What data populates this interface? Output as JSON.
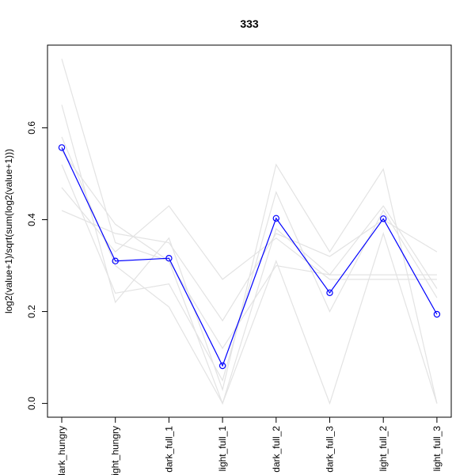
{
  "chart_data": {
    "type": "line",
    "title": "333",
    "xlabel": "",
    "ylabel": "log2(value+1)/sqrt(sum(log2(value+1)))",
    "categories": [
      "dark_hungry",
      "light_hungry",
      "dark_full_1",
      "light_full_1",
      "dark_full_2",
      "dark_full_3",
      "light_full_2",
      "light_full_3"
    ],
    "ylim": [
      -0.03,
      0.78
    ],
    "yticks": [
      0.0,
      0.2,
      0.4,
      0.6
    ],
    "ytick_labels": [
      "0.0",
      "0.2",
      "0.4",
      "0.6"
    ],
    "grid": false,
    "highlight_series": {
      "color": "#0000ff",
      "marker": "open-circle",
      "values": [
        0.557,
        0.31,
        0.316,
        0.082,
        0.403,
        0.241,
        0.402,
        0.194
      ]
    },
    "background_series_color": "#e3e3e3",
    "background_series": [
      [
        0.75,
        0.35,
        0.31,
        0.0,
        0.31,
        0.0,
        0.37,
        0.0
      ],
      [
        0.65,
        0.22,
        0.36,
        0.03,
        0.52,
        0.33,
        0.51,
        0.0
      ],
      [
        0.52,
        0.24,
        0.26,
        0.05,
        0.46,
        0.2,
        0.42,
        0.23
      ],
      [
        0.42,
        0.37,
        0.35,
        0.18,
        0.37,
        0.32,
        0.4,
        0.33
      ],
      [
        0.47,
        0.33,
        0.43,
        0.27,
        0.36,
        0.27,
        0.27,
        0.27
      ],
      [
        0.58,
        0.3,
        0.21,
        0.0,
        0.38,
        0.28,
        0.43,
        0.25
      ],
      [
        0.55,
        0.39,
        0.31,
        0.12,
        0.3,
        0.28,
        0.28,
        0.28
      ]
    ]
  }
}
